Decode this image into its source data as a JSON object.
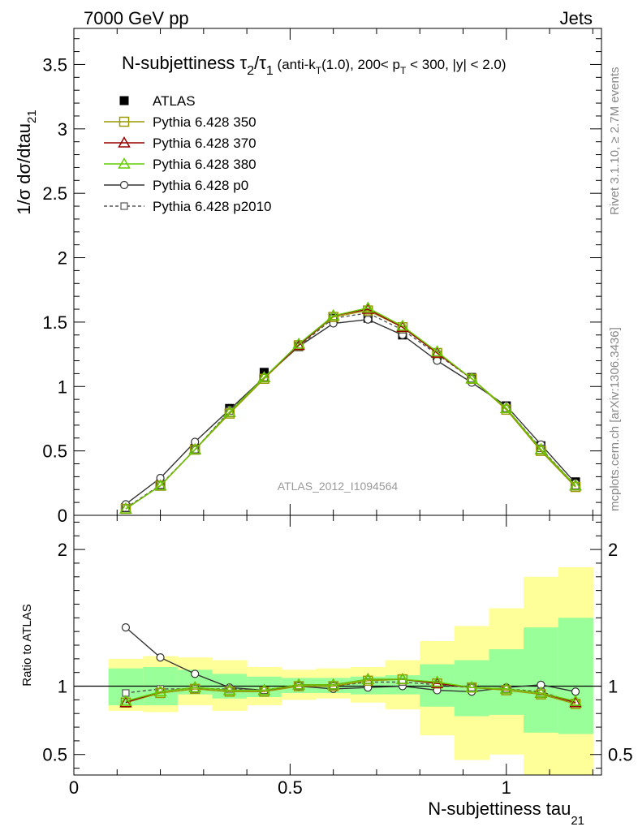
{
  "header": {
    "left": "7000 GeV pp",
    "right": "Jets"
  },
  "side_texts": {
    "rivet": "Rivet 3.1.10, ≥ 2.7M events",
    "mcplots": "mcplots.cern.ch [arXiv:1306.3436]"
  },
  "chart_data": {
    "type": "line",
    "title_parts": {
      "main": "N-subjettiness τ",
      "sub1": "2",
      "slash": "/τ",
      "sub2": "1",
      "details_a": " (anti-k",
      "details_sub": "T",
      "details_b": "(1.0), 200< p",
      "details_sub2": "T",
      "details_c": " < 300, |y| < 2.0)"
    },
    "ylabel_main": "1/σ dσ/dtau",
    "ylabel_sub": "21",
    "xlabel_main": "N-subjettiness tau",
    "xlabel_sub": "21",
    "ratio_ylabel": "Ratio to ATLAS",
    "watermark": "ATLAS_2012_I1094564",
    "xlim": [
      0,
      1.22
    ],
    "ylim_main": [
      0,
      3.78
    ],
    "ylim_ratio": [
      0.35,
      2.25
    ],
    "xticks": [
      0,
      0.5,
      1
    ],
    "xtick_labels": [
      "0",
      "0.5",
      "1"
    ],
    "yticks_main": [
      0,
      0.5,
      1,
      1.5,
      2,
      2.5,
      3,
      3.5
    ],
    "ytick_labels_main": [
      "0",
      "0.5",
      "1",
      "1.5",
      "2",
      "2.5",
      "3",
      "3.5"
    ],
    "yticks_ratio": [
      0.5,
      1,
      2
    ],
    "ytick_labels_ratio": [
      "0.5",
      "1",
      "2"
    ],
    "x": [
      0.12,
      0.2,
      0.28,
      0.36,
      0.44,
      0.52,
      0.6,
      0.68,
      0.76,
      0.84,
      0.92,
      1.0,
      1.08,
      1.16
    ],
    "bin_edges": [
      0.08,
      0.16,
      0.24,
      0.32,
      0.4,
      0.48,
      0.56,
      0.64,
      0.72,
      0.8,
      0.88,
      0.96,
      1.04,
      1.12,
      1.2
    ],
    "series": [
      {
        "name": "ATLAS",
        "color": "#000000",
        "marker": "square-filled",
        "dash": "none",
        "values": [
          0.06,
          0.24,
          0.52,
          0.83,
          1.11,
          1.31,
          1.53,
          1.53,
          1.4,
          1.24,
          1.07,
          0.85,
          0.54,
          0.26
        ]
      },
      {
        "name": "Pythia 6.428 350",
        "color": "#999900",
        "marker": "square-open",
        "dash": "none",
        "values": [
          0.05,
          0.23,
          0.51,
          0.79,
          1.06,
          1.32,
          1.54,
          1.59,
          1.46,
          1.26,
          1.06,
          0.82,
          0.5,
          0.22
        ]
      },
      {
        "name": "Pythia 6.428 370",
        "color": "#990000",
        "marker": "triangle-open",
        "dash": "none",
        "values": [
          0.05,
          0.23,
          0.51,
          0.8,
          1.07,
          1.32,
          1.55,
          1.6,
          1.46,
          1.26,
          1.06,
          0.83,
          0.51,
          0.23
        ]
      },
      {
        "name": "Pythia 6.428 380",
        "color": "#66cc00",
        "marker": "triangle-open",
        "dash": "none",
        "values": [
          0.05,
          0.23,
          0.51,
          0.8,
          1.07,
          1.33,
          1.55,
          1.61,
          1.47,
          1.27,
          1.06,
          0.83,
          0.51,
          0.23
        ]
      },
      {
        "name": "Pythia 6.428 p0",
        "color": "#333333",
        "marker": "circle-open",
        "dash": "none",
        "values": [
          0.086,
          0.29,
          0.57,
          0.82,
          1.07,
          1.31,
          1.49,
          1.52,
          1.4,
          1.2,
          1.03,
          0.85,
          0.55,
          0.25
        ]
      },
      {
        "name": "Pythia 6.428 p2010",
        "color": "#555555",
        "marker": "square-open-small",
        "dash": "4,3",
        "values": [
          0.057,
          0.235,
          0.51,
          0.81,
          1.07,
          1.31,
          1.53,
          1.57,
          1.44,
          1.25,
          1.06,
          0.83,
          0.52,
          0.23
        ]
      }
    ],
    "ratio_series": [
      {
        "name": "Pythia 6.428 350",
        "values": [
          0.88,
          0.95,
          0.98,
          0.96,
          0.96,
          1.0,
          1.0,
          1.04,
          1.05,
          1.02,
          0.99,
          0.97,
          0.94,
          0.87
        ]
      },
      {
        "name": "Pythia 6.428 370",
        "values": [
          0.88,
          0.96,
          0.99,
          0.97,
          0.97,
          1.01,
          1.01,
          1.05,
          1.05,
          1.02,
          0.99,
          0.98,
          0.95,
          0.88
        ]
      },
      {
        "name": "Pythia 6.428 380",
        "values": [
          0.89,
          0.96,
          0.99,
          0.97,
          0.97,
          1.01,
          1.01,
          1.05,
          1.05,
          1.03,
          0.99,
          0.98,
          0.95,
          0.89
        ]
      },
      {
        "name": "Pythia 6.428 p0",
        "values": [
          1.43,
          1.21,
          1.09,
          0.99,
          0.97,
          1.0,
          0.98,
          0.99,
          1.0,
          0.97,
          0.96,
          0.99,
          1.01,
          0.96
        ]
      },
      {
        "name": "Pythia 6.428 p2010",
        "values": [
          0.95,
          0.98,
          0.98,
          0.98,
          0.97,
          1.0,
          1.0,
          1.03,
          1.03,
          1.01,
          0.99,
          0.98,
          0.96,
          0.88
        ]
      }
    ],
    "band_inner": {
      "color": "#99ff99",
      "lo": [
        0.86,
        0.86,
        0.94,
        0.91,
        0.92,
        0.95,
        0.95,
        0.94,
        0.94,
        0.85,
        0.78,
        0.79,
        0.66,
        0.65
      ],
      "hi": [
        1.13,
        1.14,
        1.12,
        1.09,
        1.07,
        1.06,
        1.06,
        1.07,
        1.08,
        1.16,
        1.19,
        1.27,
        1.43,
        1.5
      ]
    },
    "band_outer": {
      "color": "#ffff99",
      "lo": [
        0.82,
        0.81,
        0.86,
        0.82,
        0.86,
        0.9,
        0.91,
        0.88,
        0.83,
        0.64,
        0.46,
        0.5,
        0.35,
        0.35
      ],
      "hi": [
        1.2,
        1.22,
        1.21,
        1.19,
        1.14,
        1.12,
        1.13,
        1.14,
        1.19,
        1.33,
        1.44,
        1.57,
        1.8,
        1.87
      ]
    }
  }
}
